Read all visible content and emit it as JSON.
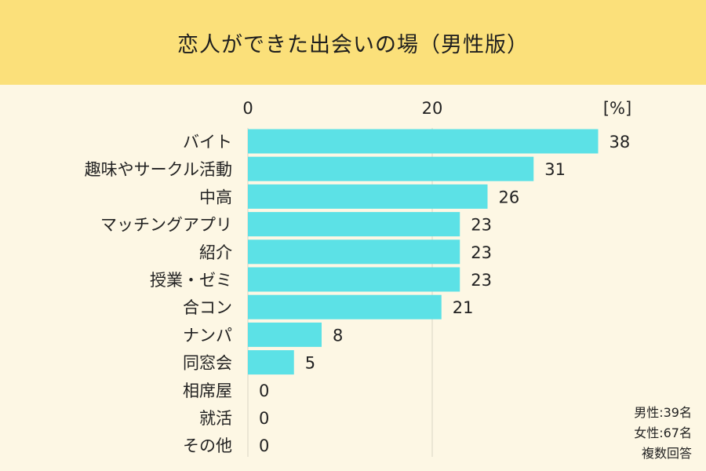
{
  "title": "恋人ができた出会いの場（男性版）",
  "colors": {
    "background": "#FDF7E4",
    "title_band": "#FBE07A",
    "bar": "#5CE1E6",
    "grid": "#D9D4C4",
    "text": "#222222"
  },
  "notes": [
    "男性:39名",
    "女性:67名",
    "複数回答"
  ],
  "chart_data": {
    "type": "bar",
    "orientation": "horizontal",
    "title": "恋人ができた出会いの場（男性版）",
    "unit_label": "[%]",
    "categories": [
      "バイト",
      "趣味やサークル活動",
      "中高",
      "マッチングアプリ",
      "紹介",
      "授業・ゼミ",
      "合コン",
      "ナンパ",
      "同窓会",
      "相席屋",
      "就活",
      "その他"
    ],
    "values": [
      38,
      31,
      26,
      23,
      23,
      23,
      21,
      8,
      5,
      0,
      0,
      0
    ],
    "data_labels": [
      "38",
      "31",
      "26",
      "23",
      "23",
      "23",
      "21",
      "8",
      "5",
      "0",
      "0",
      "0"
    ],
    "x_ticks": [
      "0",
      "20"
    ],
    "x_tick_values": [
      0,
      20
    ],
    "xlim": [
      0,
      40
    ],
    "axis_position": "top",
    "grid": true,
    "legend": "none"
  }
}
